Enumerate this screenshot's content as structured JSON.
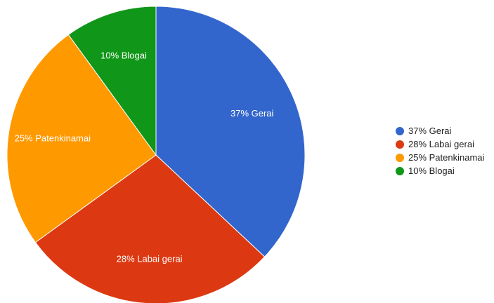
{
  "chart_data": {
    "type": "pie",
    "title": "",
    "slices": [
      {
        "label": "Gerai",
        "value": 37,
        "display": "37% Gerai",
        "color": "#3366cc"
      },
      {
        "label": "Labai gerai",
        "value": 28,
        "display": "28% Labai gerai",
        "color": "#dc3912"
      },
      {
        "label": "Patenkinamai",
        "value": 25,
        "display": "25% Patenkinamai",
        "color": "#ff9900"
      },
      {
        "label": "Blogai",
        "value": 10,
        "display": "10% Blogai",
        "color": "#109618"
      }
    ],
    "start_angle_deg": 0,
    "direction": "clockwise",
    "legend_position": "right",
    "label_color": "#ffffff"
  }
}
